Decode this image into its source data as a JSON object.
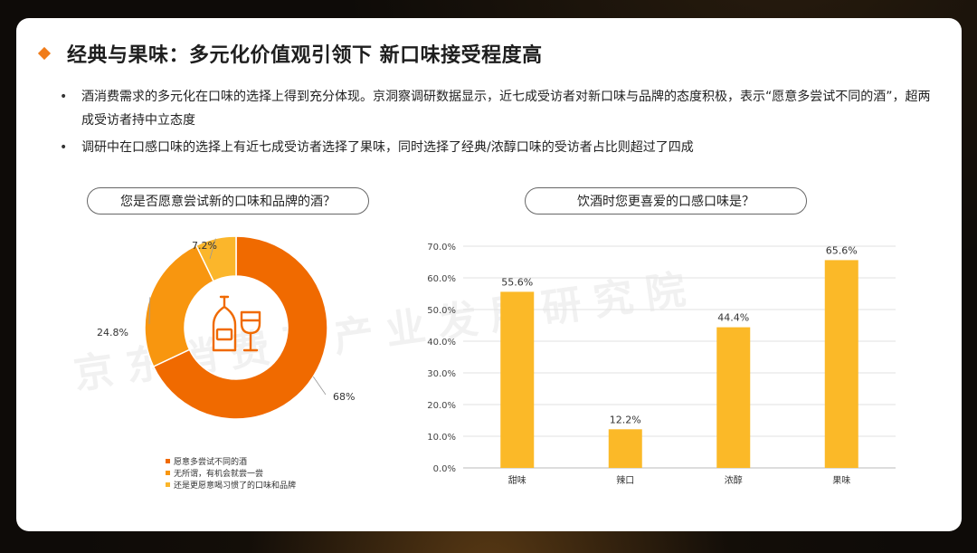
{
  "title": "经典与果味：多元化价值观引领下 新口味接受程度高",
  "bullets": [
    "酒消费需求的多元化在口味的选择上得到充分体现。京洞察调研数据显示，近七成受访者对新口味与品牌的态度积极，表示“愿意多尝试不同的酒”，超两成受访者持中立态度",
    "调研中在口感口味的选择上有近七成受访者选择了果味，同时选择了经典/浓醇口味的受访者占比则超过了四成"
  ],
  "left_chart_title": "您是否愿意尝试新的口味和品牌的酒？",
  "right_chart_title": "饮酒时您更喜爱的口感口味是？",
  "watermark": "京东消费及产业发展研究院",
  "colors": {
    "accent": "#f07c1a",
    "bar": "#fbb928"
  },
  "chart_data": [
    {
      "type": "pie",
      "title": "您是否愿意尝试新的口味和品牌的酒？",
      "donut": true,
      "center_icon": "wine-bottle-and-glass-icon",
      "legend_position": "bottom",
      "slices": [
        {
          "label": "愿意多尝试不同的酒",
          "value": 68,
          "display": "68%",
          "color": "#f06a00"
        },
        {
          "label": "无所谓，有机会就尝一尝",
          "value": 24.8,
          "display": "24.8%",
          "color": "#f8960f"
        },
        {
          "label": "还是更愿意喝习惯了的口味和品牌",
          "value": 7.2,
          "display": "7.2%",
          "color": "#fbb62b"
        }
      ]
    },
    {
      "type": "bar",
      "title": "饮酒时您更喜爱的口感口味是？",
      "categories": [
        "甜味",
        "辣口",
        "浓醇",
        "果味"
      ],
      "values": [
        55.6,
        12.2,
        44.4,
        65.6
      ],
      "value_labels": [
        "55.6%",
        "12.2%",
        "44.4%",
        "65.6%"
      ],
      "ylim": [
        0,
        70
      ],
      "yticks": [
        "0.0%",
        "10.0%",
        "20.0%",
        "30.0%",
        "40.0%",
        "50.0%",
        "60.0%",
        "70.0%"
      ],
      "grid": true
    }
  ]
}
